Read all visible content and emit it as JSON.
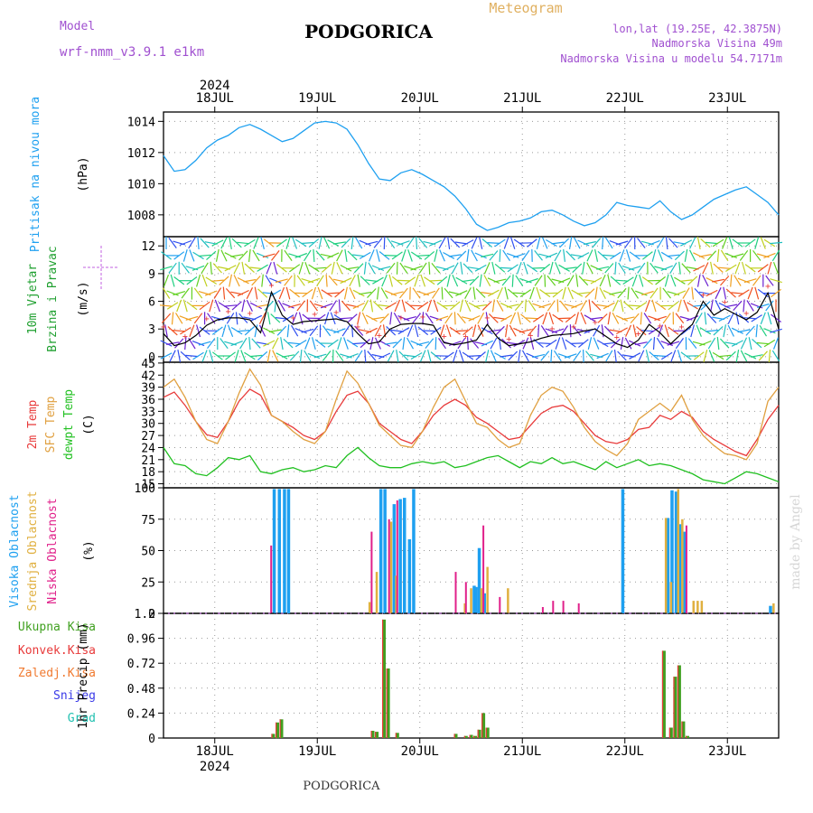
{
  "header": {
    "model_label": "Model",
    "model_name": "wrf-nmm_v3.9.1 e1km",
    "station": "PODGORICA",
    "meteogram": "Meteogram",
    "lonlat": "lon,lat (19.25E, 42.3875N)",
    "elevation": "Nadmorska Visina 49m",
    "model_elevation": "Nadmorska Visina u modelu 54.7171m",
    "footer_station": "PODGORICA",
    "watermark": "made by Angel",
    "year": "2024"
  },
  "colors": {
    "pressure": "#1ea0f0",
    "t2m": "#e83a3a",
    "sfc": "#e0a040",
    "dewpt": "#20c020",
    "high_cloud": "#1ea0f0",
    "mid_cloud": "#e0b040",
    "low_cloud": "#e0208a",
    "precip_total": "#40a020",
    "precip_conv": "#e83a3a",
    "precip_frz": "#f07a30",
    "snow": "#3a3ae8",
    "hail": "#20c0b0",
    "wind_axis": "#20c020",
    "wind_label": "#20a030"
  },
  "chart_data": {
    "x_axis": {
      "day_labels": [
        "18JUL",
        "19JUL",
        "20JUL",
        "21JUL",
        "22JUL",
        "23JUL"
      ],
      "start": "2024-07-17T12:00",
      "end": "2024-07-23T12:00"
    },
    "panels": [
      {
        "type": "line",
        "ylabel_title": "Pritisak na nivou mora",
        "unit": "(hPa)",
        "ylim": [
          1006.6,
          1014.6
        ],
        "yticks": [
          1008,
          1010,
          1012,
          1014
        ],
        "series": [
          {
            "key": "pressure",
            "values": [
              1011.8,
              1010.8,
              1010.9,
              1011.5,
              1012.3,
              1012.8,
              1013.1,
              1013.6,
              1013.8,
              1013.5,
              1013.1,
              1012.7,
              1012.9,
              1013.4,
              1013.9,
              1014.0,
              1013.9,
              1013.5,
              1012.5,
              1011.3,
              1010.3,
              1010.2,
              1010.7,
              1010.9,
              1010.6,
              1010.2,
              1009.8,
              1009.2,
              1008.4,
              1007.4,
              1007.0,
              1007.2,
              1007.5,
              1007.6,
              1007.8,
              1008.2,
              1008.3,
              1008.0,
              1007.6,
              1007.3,
              1007.5,
              1008.0,
              1008.8,
              1008.6,
              1008.5,
              1008.4,
              1008.9,
              1008.2,
              1007.7,
              1008.0,
              1008.5,
              1009.0,
              1009.3,
              1009.6,
              1009.8,
              1009.3,
              1008.8,
              1008.0
            ]
          }
        ]
      },
      {
        "type": "line",
        "ylabel_title": "10m Vjetar",
        "ylabel_sub": "Brzina i Pravac",
        "unit": "(m/s)",
        "ylim": [
          -0.6,
          13.0
        ],
        "yticks": [
          0,
          3,
          6,
          9,
          12
        ],
        "series": [
          {
            "key": "wind_speed",
            "values": [
              2.5,
              1.2,
              1.5,
              2.3,
              3.4,
              4.0,
              4.2,
              4.2,
              4.0,
              2.6,
              7.0,
              4.5,
              3.5,
              3.8,
              3.9,
              4.0,
              4.1,
              3.8,
              2.5,
              1.4,
              1.6,
              3.0,
              3.5,
              3.6,
              3.6,
              3.4,
              1.5,
              1.3,
              1.5,
              1.8,
              3.5,
              2.0,
              1.2,
              1.4,
              1.6,
              2.0,
              2.3,
              2.4,
              2.5,
              2.8,
              3.0,
              2.2,
              1.4,
              1.0,
              1.8,
              3.5,
              2.6,
              1.4,
              2.5,
              3.5,
              6.0,
              4.5,
              5.2,
              4.6,
              4.0,
              4.8,
              6.9,
              3.0
            ]
          }
        ]
      },
      {
        "type": "line",
        "ylabel_title": "2m Temp",
        "ylabel_sub": "SFC Temp",
        "ylabel_sub2": "dewpt Temp",
        "unit": "(C)",
        "ylim": [
          14.0,
          45.2
        ],
        "yticks": [
          15,
          18,
          21,
          24,
          27,
          30,
          33,
          36,
          39,
          42,
          45
        ],
        "series": [
          {
            "key": "t2m",
            "values": [
              36.5,
              37.8,
              34.5,
              30.5,
              27.2,
              26.5,
              30.5,
              35.5,
              38.5,
              37.0,
              32.0,
              30.5,
              29.0,
              27.0,
              26.0,
              28.0,
              33.0,
              37.0,
              38.0,
              35.0,
              30.0,
              28.0,
              26.0,
              25.0,
              28.0,
              32.0,
              34.5,
              36.0,
              34.5,
              31.5,
              30.0,
              28.0,
              26.0,
              26.5,
              29.5,
              32.5,
              34.0,
              34.5,
              33.0,
              30.0,
              27.0,
              25.5,
              25.0,
              26.0,
              28.5,
              29.0,
              32.0,
              31.0,
              33.0,
              31.5,
              28.0,
              26.0,
              24.5,
              23.0,
              22.0,
              26.0,
              31.0,
              34.5
            ]
          },
          {
            "key": "sfc",
            "values": [
              39.0,
              41.0,
              36.5,
              30.5,
              26.0,
              25.0,
              30.5,
              37.5,
              43.5,
              39.5,
              32.0,
              30.5,
              28.0,
              26.0,
              25.0,
              28.0,
              36.0,
              43.0,
              40.0,
              35.0,
              29.5,
              27.0,
              24.5,
              24.0,
              28.0,
              34.0,
              39.0,
              41.0,
              35.5,
              30.0,
              29.0,
              26.0,
              24.0,
              25.0,
              32.0,
              37.0,
              39.0,
              38.0,
              34.0,
              29.0,
              25.5,
              23.5,
              22.0,
              25.0,
              31.0,
              33.0,
              35.0,
              33.0,
              37.0,
              31.0,
              27.0,
              24.5,
              22.5,
              22.0,
              21.0,
              25.0,
              35.5,
              39.0
            ]
          },
          {
            "key": "dewpt",
            "values": [
              24.0,
              20.0,
              19.5,
              17.5,
              17.0,
              19.0,
              21.5,
              21.0,
              22.0,
              18.0,
              17.5,
              18.5,
              19.0,
              18.0,
              18.5,
              19.5,
              19.0,
              22.0,
              24.0,
              21.5,
              19.5,
              19.0,
              19.0,
              20.0,
              20.5,
              20.0,
              20.5,
              19.0,
              19.5,
              20.5,
              21.5,
              22.0,
              20.5,
              19.0,
              20.5,
              20.0,
              21.5,
              20.0,
              20.5,
              19.5,
              18.5,
              20.5,
              19.0,
              20.0,
              21.0,
              19.5,
              20.0,
              19.5,
              18.5,
              17.5,
              16.0,
              15.5,
              15.0,
              16.5,
              18.0,
              17.5,
              16.5,
              15.5
            ]
          }
        ]
      },
      {
        "type": "bar",
        "ylabel_title": "Visoka Oblacnost",
        "ylabel_sub": "Srednja Oblacnost",
        "ylabel_sub2": "Niska Oblacnost",
        "unit": "(%)",
        "ylim": [
          0,
          100
        ],
        "yticks": [
          0,
          25,
          50,
          75,
          100
        ],
        "series": [
          {
            "key": "high_cloud",
            "name": "Visoka Oblacnost",
            "x": [
              18.58,
              18.63,
              18.68,
              18.72,
              19.62,
              19.66,
              19.75,
              19.81,
              19.85,
              19.9,
              19.94,
              20.53,
              20.55,
              20.58,
              20.63,
              21.98,
              22.42,
              22.46,
              22.5,
              22.54,
              22.58,
              23.42
            ],
            "values": [
              99,
              99,
              99,
              99,
              99,
              99,
              87,
              91,
              92,
              59,
              99,
              22,
              21,
              52,
              16,
              99,
              76,
              98,
              97,
              71,
              65,
              6
            ]
          },
          {
            "key": "mid_cloud",
            "name": "Srednja Oblacnost",
            "x": [
              19.51,
              19.58,
              19.72,
              19.77,
              20.44,
              20.5,
              20.6,
              20.66,
              20.86,
              22.4,
              22.45,
              22.52,
              22.56,
              22.67,
              22.71,
              22.75,
              23.45
            ],
            "values": [
              9,
              33,
              73,
              30,
              8,
              20,
              20,
              37,
              20,
              76,
              25,
              99,
              75,
              10,
              10,
              10,
              8
            ]
          },
          {
            "key": "low_cloud",
            "name": "Niska Oblacnost",
            "x": [
              18.55,
              19.53,
              19.7,
              19.78,
              20.35,
              20.45,
              20.62,
              20.78,
              21.2,
              21.3,
              21.4,
              21.55,
              22.6
            ],
            "values": [
              54,
              65,
              75,
              90,
              33,
              25,
              70,
              13,
              5,
              10,
              10,
              8,
              70
            ]
          }
        ]
      },
      {
        "type": "bar",
        "ylabel_title": "1hr Precip",
        "unit": "(mm)",
        "ylim": [
          0,
          1.2
        ],
        "yticks": [
          0,
          0.24,
          0.48,
          0.72,
          0.96,
          1.2
        ],
        "legend": [
          "Ukupna Kisa",
          "Konvek.Kisa",
          "Zaledj.Kisa",
          "Snijeg",
          "Grad"
        ],
        "series": [
          {
            "key": "precip_total",
            "name": "Ukupna Kisa",
            "x": [
              18.57,
              18.61,
              18.65,
              19.54,
              19.58,
              19.65,
              19.69,
              19.78,
              20.35,
              20.45,
              20.5,
              20.54,
              20.58,
              20.62,
              20.66,
              22.38,
              22.45,
              22.49,
              22.53,
              22.57,
              22.61
            ],
            "values": [
              0.04,
              0.15,
              0.18,
              0.07,
              0.06,
              1.14,
              0.67,
              0.05,
              0.04,
              0.02,
              0.03,
              0.02,
              0.08,
              0.24,
              0.1,
              0.84,
              0.1,
              0.59,
              0.7,
              0.16,
              0.02
            ]
          }
        ]
      }
    ]
  }
}
